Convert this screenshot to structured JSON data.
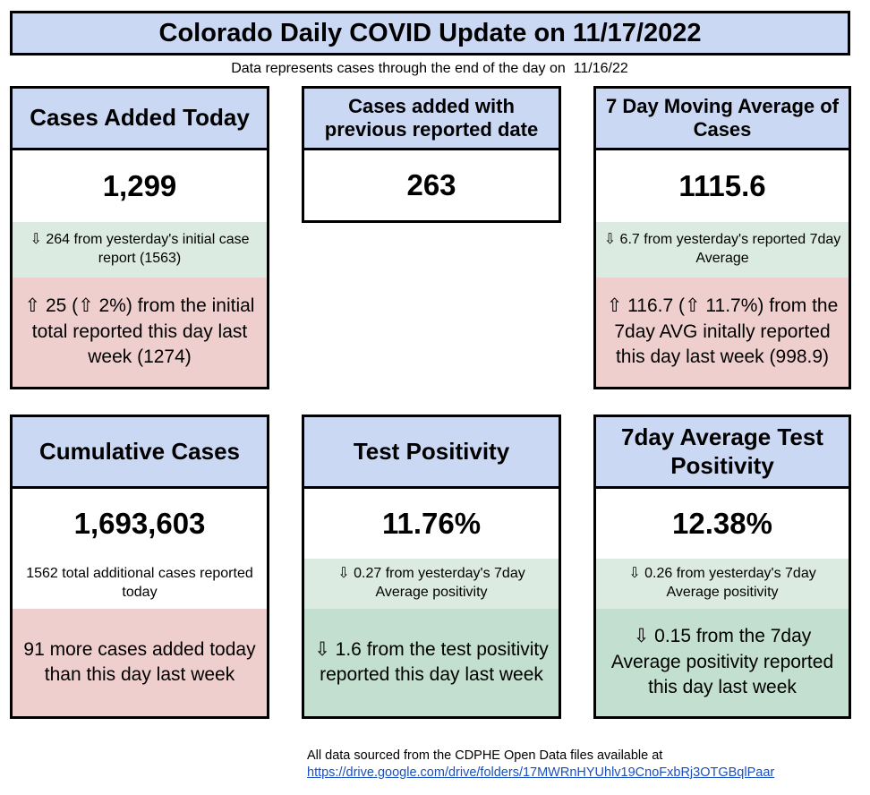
{
  "header": {
    "title": "Colorado Daily COVID Update on 11/17/2022",
    "subtitle": "Data represents cases through the end of the day on  11/16/22"
  },
  "panels": {
    "cases_added_today": {
      "title": "Cases Added Today",
      "value": "1,299",
      "change_yesterday": "⇩ 264 from yesterday's initial case report (1563)",
      "change_last_week": "⇧ 25 (⇧ 2%) from the initial total reported this day last week (1274)"
    },
    "previous_date": {
      "title": "Cases added with previous reported date",
      "value": "263"
    },
    "moving_average": {
      "title": "7 Day Moving Average of Cases",
      "value": "1115.6",
      "change_yesterday": "⇩ 6.7 from yesterday's reported 7day Average",
      "change_last_week": "⇧ 116.7 (⇧ 11.7%) from the 7day AVG initally reported this day last week (998.9)"
    },
    "cumulative": {
      "title": "Cumulative Cases",
      "value": "1,693,603",
      "additional": "1562 total additional cases reported today",
      "change_last_week": "91 more cases added today than this day last week"
    },
    "test_positivity": {
      "title": "Test Positivity",
      "value": "11.76%",
      "change_yesterday": "⇩ 0.27 from yesterday's 7day Average positivity",
      "change_last_week": "⇩ 1.6 from the test positivity reported this day last week"
    },
    "avg_test_positivity": {
      "title": "7day Average Test Positivity",
      "value": "12.38%",
      "change_yesterday": "⇩ 0.26 from yesterday's 7day Average positivity",
      "change_last_week": "⇩ 0.15 from the 7day Average positivity reported this day last week"
    }
  },
  "footer": {
    "source_text": "All data sourced from the CDPHE Open Data files available at",
    "link": "https://drive.google.com/drive/folders/17MWRnHYUhlv19CnoFxbRj3OTGBqlPaar"
  },
  "colors": {
    "header_blue": "#cbd8f3",
    "decrease_green": "#dcebe1",
    "increase_pink": "#efcfcd",
    "decrease_teal": "#c3dfd0"
  }
}
